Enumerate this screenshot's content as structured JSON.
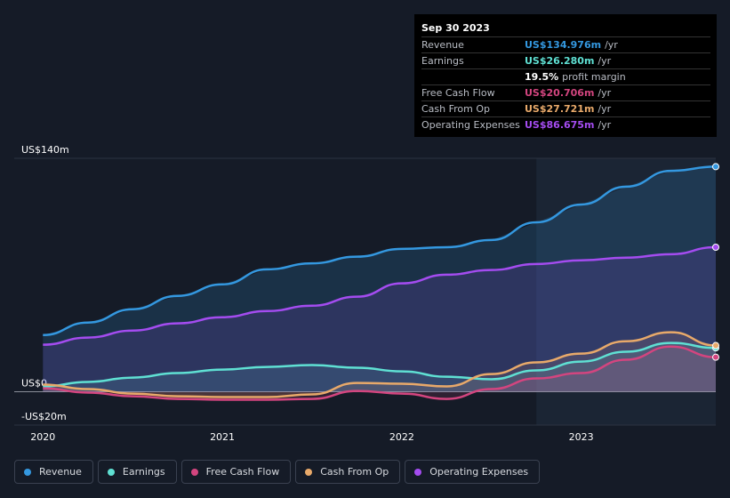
{
  "chart_data": {
    "type": "line",
    "x": [
      2020,
      2020.25,
      2020.5,
      2020.75,
      2021,
      2021.25,
      2021.5,
      2021.75,
      2022,
      2022.25,
      2022.5,
      2022.75,
      2023,
      2023.25,
      2023.5,
      2023.75
    ],
    "xlim": [
      2019.84,
      2023.75
    ],
    "xticks": [
      2020,
      2021,
      2022,
      2023
    ],
    "ylim": [
      -20,
      140
    ],
    "yticks": [
      {
        "value": -20,
        "label": "-US$20m"
      },
      {
        "value": 0,
        "label": "US$0"
      },
      {
        "value": 140,
        "label": "US$140m"
      }
    ],
    "series": [
      {
        "name": "Revenue",
        "color": "#3498e0",
        "values": [
          34,
          41.5,
          49.5,
          57.5,
          64.4,
          73.4,
          77,
          81,
          85.7,
          86.7,
          91,
          101.6,
          112.3,
          123,
          132.5,
          134.976
        ]
      },
      {
        "name": "Earnings",
        "color": "#5fe0d3",
        "values": [
          3.2,
          5.9,
          8.5,
          11.2,
          13.3,
          14.9,
          16,
          14.4,
          12.2,
          9,
          7.5,
          12.8,
          18.1,
          24,
          29.3,
          26.28
        ]
      },
      {
        "name": "Free Cash Flow",
        "color": "#d3457f",
        "values": [
          2.1,
          -0.5,
          -2.7,
          -4.3,
          -4.8,
          -4.8,
          -4.3,
          0.5,
          -1.1,
          -4.3,
          1.6,
          8,
          11.2,
          19.2,
          27.1,
          20.706
        ]
      },
      {
        "name": "Cash From Op",
        "color": "#e8a96a",
        "values": [
          4.3,
          1.6,
          -1.1,
          -2.7,
          -3.2,
          -3.2,
          -1.6,
          5.3,
          4.8,
          3.2,
          10.6,
          17.6,
          22.9,
          30.3,
          35.7,
          27.721
        ]
      },
      {
        "name": "Operating Expenses",
        "color": "#a44cf0",
        "values": [
          28.2,
          32.5,
          36.7,
          41,
          44.7,
          48.4,
          51.6,
          57,
          65,
          70.2,
          73,
          76.6,
          78.8,
          80.4,
          82.5,
          86.675
        ]
      }
    ],
    "tooltip": {
      "title": "Sep 30 2023",
      "rows": [
        {
          "label": "Revenue",
          "value": "US$134.976m",
          "unit": "/yr"
        },
        {
          "label": "Earnings",
          "value": "US$26.280m",
          "unit": "/yr"
        },
        {
          "label": "Free Cash Flow",
          "value": "US$20.706m",
          "unit": "/yr"
        },
        {
          "label": "Cash From Op",
          "value": "US$27.721m",
          "unit": "/yr"
        },
        {
          "label": "Operating Expenses",
          "value": "US$86.675m",
          "unit": "/yr"
        }
      ],
      "margin": {
        "value": "19.5%",
        "text": "profit margin"
      }
    }
  }
}
